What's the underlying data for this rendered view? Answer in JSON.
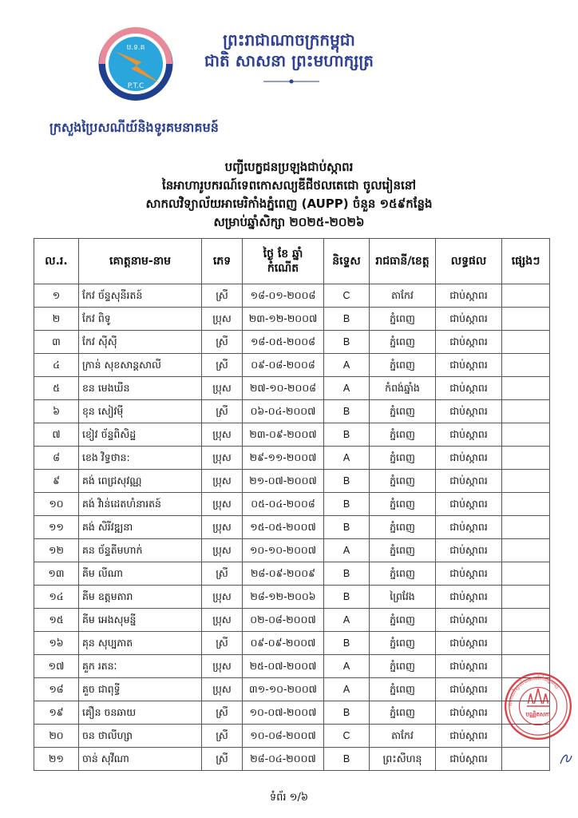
{
  "header": {
    "kingdom": "ព្រះរាជាណាចក្រកម្ពុជា",
    "motto": "ជាតិ សាសនា ព្រះមហាក្សត្រ",
    "ministry": "ក្រសួងប្រៃសណីយ៍និងទូរគមនាគមន៍",
    "logo_text_top": "ប.ទ.គ",
    "logo_text_bottom": "P.T.C"
  },
  "title": {
    "line1": "បញ្ជីបេក្ខជនប្រឡងជាប់ស្កាពរ",
    "line2": "នៃអាហារូបករណ៍ទេពកោសល្យឌីជីថលតេជោ ចូលរៀននៅ",
    "line3": "សាកលវិទ្យាល័យអាមេរិកាំងភ្នំពេញ (AUPP) ចំនួន ១៥៩កន្លែង",
    "line4": "សម្រាប់ឆ្នាំសិក្សា ២០២៥-២០២៦"
  },
  "table": {
    "headers": [
      "ល.រ.",
      "គោត្តនាម-នាម",
      "ភេទ",
      "ថ្ងៃ ខែ ឆ្នាំ កំណើត",
      "និទ្ទេស",
      "រាជធានី/ខេត្ត",
      "លទ្ធផល",
      "ផ្សេងៗ"
    ],
    "rows": [
      [
        "១",
        "កែវ ច័ន្ទសុនីរតន៍",
        "ស្រី",
        "១៨-០១-២០០៨",
        "C",
        "តាកែវ",
        "ជាប់ស្កាពរ",
        ""
      ],
      [
        "២",
        "កែវ ពិទូ",
        "ប្រុស",
        "២៣-១២-២០០៧",
        "B",
        "ភ្នំពេញ",
        "ជាប់ស្កាពរ",
        ""
      ],
      [
        "៣",
        "កែវ ស៊ីស៊ី",
        "ស្រី",
        "១៨-០៥-២០០៨",
        "B",
        "ភ្នំពេញ",
        "ជាប់ស្កាពរ",
        ""
      ],
      [
        "៤",
        "ក្រាន់ សុខសាន្តសាលី",
        "ស្រី",
        "០៩-០៨-២០០៨",
        "A",
        "ភ្នំពេញ",
        "ជាប់ស្កាពរ",
        ""
      ],
      [
        "៥",
        "ខន មេងឃីន",
        "ប្រុស",
        "២៧-១០-២០០៨",
        "A",
        "កំពង់ឆ្នាំង",
        "ជាប់ស្កាពរ",
        ""
      ],
      [
        "៦",
        "ខុន សៀវម៉ី",
        "ស្រី",
        "០៦-០៤-២០០៧",
        "B",
        "ភ្នំពេញ",
        "ជាប់ស្កាពរ",
        ""
      ],
      [
        "៧",
        "ខៀវ ច័ន្ទពិសិដ្ឋ",
        "ប្រុស",
        "២៣-០៩-២០០៧",
        "B",
        "ភ្នំពេញ",
        "ជាប់ស្កាពរ",
        ""
      ],
      [
        "៨",
        "ខេង វិទ្ធថាន:",
        "ប្រុស",
        "២៩-១១-២០០៧",
        "A",
        "ភ្នំពេញ",
        "ជាប់ស្កាពរ",
        ""
      ],
      [
        "៩",
        "គង់ ពេជ្រសុវណ្ណ",
        "ប្រុស",
        "២១-០៧-២០០៧",
        "B",
        "ភ្នំពេញ",
        "ជាប់ស្កាពរ",
        ""
      ],
      [
        "១០",
        "គង់ វិាន់ដេតហំនារតន៍",
        "ប្រុស",
        "០៥-០៤-២០០៨",
        "B",
        "ភ្នំពេញ",
        "ជាប់ស្កាពរ",
        ""
      ],
      [
        "១១",
        "គង់ សិរីវឌ្ឍនា",
        "ប្រុស",
        "១៥-០៥-២០០៧",
        "B",
        "ភ្នំពេញ",
        "ជាប់ស្កាពរ",
        ""
      ],
      [
        "១២",
        "គន ច័ន្ទតីមហាក់",
        "ប្រុស",
        "១០-១០-២០០៧",
        "A",
        "ភ្នំពេញ",
        "ជាប់ស្កាពរ",
        ""
      ],
      [
        "១៣",
        "គីម លីណា",
        "ស្រី",
        "២៨-០៩-២០០៩",
        "B",
        "ភ្នំពេញ",
        "ជាប់ស្កាពរ",
        ""
      ],
      [
        "១៤",
        "គីម ឧត្តមតារា",
        "ប្រុស",
        "២៨-១២-២០០៦",
        "B",
        "ព្រៃវែង",
        "ជាប់ស្កាពរ",
        ""
      ],
      [
        "១៥",
        "គីម អេងសុមន្នី",
        "ប្រុស",
        "០២-០៨-២០០៧",
        "A",
        "ភ្នំពេញ",
        "ជាប់ស្កាពរ",
        ""
      ],
      [
        "១៦",
        "គុន សុប្បភាត",
        "ស្រី",
        "០៩-០៩-២០០៧",
        "B",
        "ភ្នំពេញ",
        "ជាប់ស្កាពរ",
        ""
      ],
      [
        "១៧",
        "គួក រតនៈ",
        "ប្រុស",
        "២៥-០៧-២០០៧",
        "A",
        "ភ្នំពេញ",
        "ជាប់ស្កាពរ",
        ""
      ],
      [
        "១៨",
        "គួច ជាពុទ្ធី",
        "ប្រុស",
        "៣១-១០-២០០៧",
        "A",
        "ភ្នំពេញ",
        "ជាប់ស្កាពរ",
        ""
      ],
      [
        "១៩",
        "គឿន ចនឆាយ",
        "ស្រី",
        "១០-០៧-២០០៧",
        "B",
        "ភ្នំពេញ",
        "ជាប់ស្កាពរ",
        ""
      ],
      [
        "២០",
        "ចន ថាលីហ្សា",
        "ស្រី",
        "១០-០៨-២០០៧",
        "C",
        "តាកែវ",
        "ជាប់ស្កាពរ",
        ""
      ],
      [
        "២១",
        "ចាន់ សុវីណា",
        "ស្រី",
        "២៨-០៤-២០០៧",
        "B",
        "ព្រះសីហនុ",
        "ជាប់ស្កាពរ",
        ""
      ]
    ]
  },
  "stamp": {
    "text": "សាកលវិទ្យាល័យអាមេរិកាំងភ្នំពេញ",
    "center": "បណ្ណិតសភា"
  },
  "footer": {
    "page": "ទំព័រ ១/៦"
  },
  "colors": {
    "heading_blue": "#2b3f95",
    "stamp_red": "#d8232a"
  }
}
